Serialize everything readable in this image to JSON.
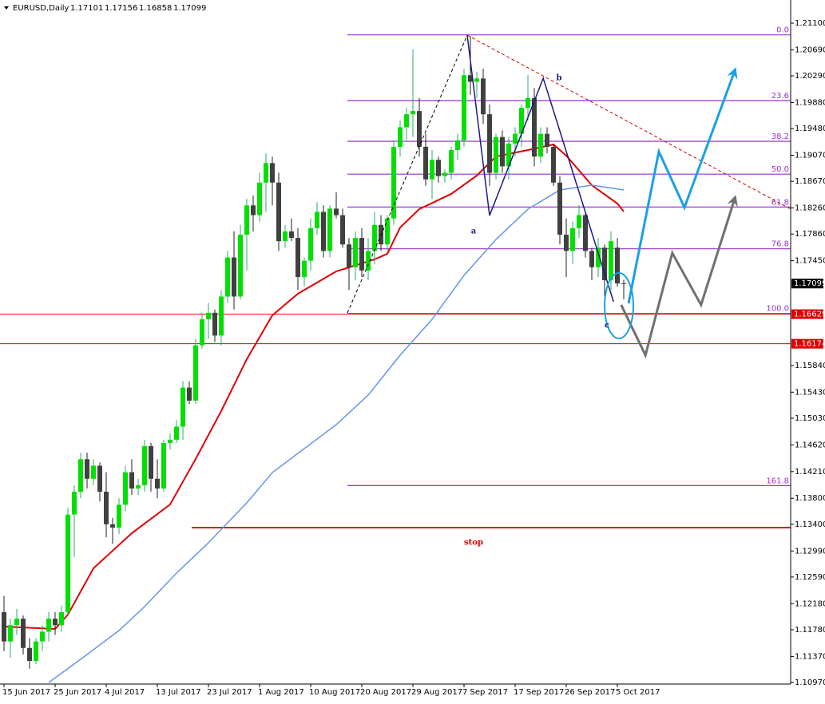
{
  "chart_data": {
    "type": "candlestick",
    "symbol": "EURUSD,Daily",
    "categories": [
      "15 Jun 2017",
      null,
      null,
      null,
      null,
      null,
      null,
      null,
      "25 Jun 2017",
      null,
      null,
      null,
      null,
      null,
      null,
      null,
      "4 Jul 2017",
      null,
      null,
      null,
      null,
      null,
      null,
      null,
      "13 Jul 2017",
      null,
      null,
      null,
      null,
      null,
      null,
      null,
      "23 Jul 2017",
      null,
      null,
      null,
      null,
      null,
      null,
      null,
      "1 Aug 2017",
      null,
      null,
      null,
      null,
      null,
      null,
      null,
      "10 Aug 2017",
      null,
      null,
      null,
      null,
      null,
      null,
      null,
      "20 Aug 2017",
      null,
      null,
      null,
      null,
      null,
      null,
      null,
      "29 Aug 2017",
      null,
      null,
      null,
      null,
      null,
      null,
      null,
      "7 Sep 2017",
      null,
      null,
      null,
      null,
      null,
      null,
      null,
      "17 Sep 2017",
      null,
      null,
      null,
      null,
      null,
      null,
      null,
      "26 Sep 2017",
      null,
      null,
      null,
      null,
      null,
      null,
      null,
      "5 Oct 2017",
      null
    ],
    "open": [
      1.1205,
      1.116,
      1.1185,
      1.1195,
      1.115,
      1.113,
      1.116,
      1.1175,
      1.1195,
      1.1185,
      1.1205,
      1.1355,
      1.139,
      1.144,
      1.141,
      1.143,
      1.139,
      1.134,
      1.1335,
      1.137,
      1.142,
      1.1395,
      1.14,
      1.146,
      1.141,
      1.1395,
      1.1465,
      1.147,
      1.149,
      1.155,
      1.153,
      1.1615,
      1.1655,
      1.1665,
      1.163,
      1.169,
      1.175,
      1.169,
      1.1785,
      1.183,
      1.1815,
      1.1865,
      1.1895,
      1.1865,
      1.1775,
      1.179,
      1.178,
      1.172,
      1.1745,
      1.1795,
      1.182,
      1.176,
      1.1825,
      1.1815,
      1.177,
      1.1735,
      1.178,
      1.173,
      1.176,
      1.18,
      1.177,
      1.181,
      1.192,
      1.195,
      1.197,
      1.1975,
      1.192,
      1.187,
      1.19,
      1.1875,
      1.188,
      1.1915,
      1.193,
      1.203,
      1.202,
      1.2025,
      1.197,
      1.188,
      1.1935,
      1.189,
      1.1925,
      1.194,
      1.198,
      1.1995,
      1.1905,
      1.194,
      1.192,
      1.1865,
      1.1785,
      1.176,
      1.1795,
      1.1815,
      1.176,
      1.1735,
      1.1765,
      1.1715,
      1.1765,
      1.17101
    ],
    "high": [
      1.123,
      1.1195,
      1.121,
      1.12,
      1.1165,
      1.1165,
      1.1185,
      1.1205,
      1.1205,
      1.1215,
      1.1365,
      1.14,
      1.145,
      1.145,
      1.144,
      1.1435,
      1.142,
      1.135,
      1.138,
      1.143,
      1.144,
      1.141,
      1.147,
      1.1465,
      1.144,
      1.147,
      1.148,
      1.15,
      1.156,
      1.156,
      1.1625,
      1.1665,
      1.168,
      1.167,
      1.17,
      1.176,
      1.179,
      1.18,
      1.184,
      1.1845,
      1.188,
      1.191,
      1.1905,
      1.188,
      1.18,
      1.181,
      1.1795,
      1.175,
      1.181,
      1.1835,
      1.183,
      1.183,
      1.185,
      1.1825,
      1.178,
      1.179,
      1.1795,
      1.178,
      1.182,
      1.1815,
      1.1815,
      1.193,
      1.196,
      1.198,
      1.207,
      1.1995,
      1.194,
      1.1915,
      1.1905,
      1.1885,
      1.192,
      1.194,
      1.204,
      1.209,
      1.2035,
      1.204,
      1.1985,
      1.194,
      1.1945,
      1.1935,
      1.195,
      1.1985,
      1.203,
      1.201,
      1.195,
      1.195,
      1.1925,
      1.1875,
      1.181,
      1.1805,
      1.183,
      1.182,
      1.1765,
      1.178,
      1.177,
      1.179,
      1.178,
      1.17156
    ],
    "low": [
      1.1145,
      1.1135,
      1.117,
      1.114,
      1.1118,
      1.1125,
      1.1145,
      1.116,
      1.117,
      1.1175,
      1.12,
      1.129,
      1.138,
      1.1395,
      1.14,
      1.1375,
      1.132,
      1.131,
      1.1325,
      1.136,
      1.1385,
      1.1385,
      1.139,
      1.139,
      1.138,
      1.139,
      1.1455,
      1.1465,
      1.147,
      1.1525,
      1.1525,
      1.161,
      1.1625,
      1.162,
      1.1615,
      1.168,
      1.167,
      1.1685,
      1.173,
      1.179,
      1.1805,
      1.182,
      1.183,
      1.176,
      1.1765,
      1.1775,
      1.17,
      1.1705,
      1.173,
      1.1785,
      1.175,
      1.175,
      1.181,
      1.1765,
      1.17,
      1.1715,
      1.172,
      1.1715,
      1.174,
      1.176,
      1.176,
      1.18,
      1.1905,
      1.193,
      1.1935,
      1.1905,
      1.186,
      1.184,
      1.1865,
      1.1865,
      1.187,
      1.19,
      1.192,
      1.2,
      1.1995,
      1.1955,
      1.186,
      1.187,
      1.188,
      1.187,
      1.1905,
      1.192,
      1.196,
      1.189,
      1.1895,
      1.191,
      1.186,
      1.177,
      1.172,
      1.174,
      1.178,
      1.175,
      1.1715,
      1.172,
      1.169,
      1.17,
      1.1705,
      1.16858
    ],
    "close": [
      1.116,
      1.1185,
      1.1195,
      1.115,
      1.113,
      1.116,
      1.1175,
      1.1195,
      1.1185,
      1.1205,
      1.1355,
      1.139,
      1.144,
      1.141,
      1.143,
      1.139,
      1.134,
      1.1335,
      1.137,
      1.142,
      1.1395,
      1.14,
      1.146,
      1.141,
      1.1395,
      1.1465,
      1.147,
      1.149,
      1.155,
      1.153,
      1.1615,
      1.1655,
      1.1665,
      1.163,
      1.169,
      1.175,
      1.169,
      1.1785,
      1.183,
      1.1815,
      1.1865,
      1.1895,
      1.1865,
      1.1775,
      1.179,
      1.178,
      1.172,
      1.1745,
      1.1795,
      1.182,
      1.176,
      1.1825,
      1.1815,
      1.177,
      1.1735,
      1.178,
      1.173,
      1.176,
      1.18,
      1.177,
      1.181,
      1.192,
      1.195,
      1.197,
      1.1975,
      1.192,
      1.187,
      1.19,
      1.1875,
      1.188,
      1.1915,
      1.193,
      1.203,
      1.202,
      1.2025,
      1.197,
      1.188,
      1.1935,
      1.189,
      1.1925,
      1.194,
      1.198,
      1.1995,
      1.1905,
      1.194,
      1.192,
      1.1865,
      1.1785,
      1.176,
      1.1795,
      1.1815,
      1.176,
      1.1735,
      1.1765,
      1.1715,
      1.1775,
      1.171,
      1.17099
    ],
    "bull_color": "#00e000",
    "bear_color": "#404040",
    "ylim": [
      1.1097,
      1.211
    ],
    "yticks": [
      {
        "value": 1.211,
        "label": "1.21100"
      },
      {
        "value": 1.2069,
        "label": "1.20690"
      },
      {
        "value": 1.2029,
        "label": "1.20290"
      },
      {
        "value": 1.1988,
        "label": "1.19880"
      },
      {
        "value": 1.1948,
        "label": "1.19480"
      },
      {
        "value": 1.1907,
        "label": "1.19070"
      },
      {
        "value": 1.1867,
        "label": "1.18670"
      },
      {
        "value": 1.1826,
        "label": "1.18260"
      },
      {
        "value": 1.1786,
        "label": "1.17860"
      },
      {
        "value": 1.1745,
        "label": "1.17450"
      },
      {
        "value": 1.1584,
        "label": "1.15840"
      },
      {
        "value": 1.1543,
        "label": "1.15430"
      },
      {
        "value": 1.1503,
        "label": "1.15030"
      },
      {
        "value": 1.1462,
        "label": "1.14620"
      },
      {
        "value": 1.1421,
        "label": "1.14210"
      },
      {
        "value": 1.138,
        "label": "1.13800"
      },
      {
        "value": 1.134,
        "label": "1.13400"
      },
      {
        "value": 1.1299,
        "label": "1.12990"
      },
      {
        "value": 1.1259,
        "label": "1.12590"
      },
      {
        "value": 1.1218,
        "label": "1.12180"
      },
      {
        "value": 1.1178,
        "label": "1.11780"
      },
      {
        "value": 1.1137,
        "label": "1.11370"
      },
      {
        "value": 1.1097,
        "label": "1.10970"
      }
    ],
    "ma_lines": [
      {
        "color": "#e00000",
        "x": [
          0,
          8,
          10,
          14,
          20,
          26,
          30,
          34,
          38,
          42,
          46,
          52,
          58,
          60,
          62,
          65,
          70,
          74,
          77,
          82,
          86,
          88,
          92,
          96,
          97
        ],
        "values": [
          1.11828,
          1.11792,
          1.12012,
          1.12724,
          1.13263,
          1.13705,
          1.14404,
          1.1514,
          1.15937,
          1.16611,
          1.16943,
          1.17286,
          1.1747,
          1.17556,
          1.1796,
          1.18243,
          1.18476,
          1.18758,
          1.19052,
          1.1915,
          1.19236,
          1.19064,
          1.1861,
          1.18328,
          1.18206
        ]
      },
      {
        "color": "#6495ed",
        "x": [
          7,
          12,
          18,
          22,
          27,
          32,
          38,
          42,
          47,
          52,
          57,
          62,
          67,
          72,
          77,
          82,
          87,
          92,
          97
        ],
        "values": [
          1.1097,
          1.11326,
          1.11767,
          1.12135,
          1.1265,
          1.13116,
          1.1373,
          1.14195,
          1.14563,
          1.14931,
          1.15385,
          1.15998,
          1.1655,
          1.17225,
          1.17776,
          1.18242,
          1.18537,
          1.1861,
          1.18537
        ]
      }
    ],
    "horizontal_lines": [
      {
        "value": 1.16629,
        "color": "#e00000"
      },
      {
        "value": 1.16174,
        "color": "#e00000"
      }
    ],
    "fib": {
      "color": "#9932cc",
      "start": 53.75,
      "levels": [
        {
          "label": "0.0",
          "value": 1.2092
        },
        {
          "label": "23.6",
          "value": 1.1991
        },
        {
          "label": "38.2",
          "value": 1.19285
        },
        {
          "label": "50.0",
          "value": 1.1878
        },
        {
          "label": "61.8",
          "value": 1.18275
        },
        {
          "label": "76.8",
          "value": 1.17633
        },
        {
          "label": "100.0",
          "value": 1.1664
        },
        {
          "label": "161.8",
          "value": 1.13995
        }
      ]
    },
    "stop": {
      "label": "stop",
      "value": 1.13349,
      "start": 29.4,
      "color": "#e00000"
    },
    "drawings": [
      {
        "color": "#000000",
        "dash": true,
        "width": 1,
        "x": [
          53.75,
          72.5
        ],
        "values": [
          1.16648,
          1.20916
        ]
      },
      {
        "color": "#cc0000",
        "dash": true,
        "width": 1,
        "x": [
          72.5,
          128.5
        ],
        "values": [
          1.20916,
          1.1796
        ]
      },
      {
        "color": "#1a1a80",
        "dash": false,
        "width": 1.5,
        "x": [
          72.5,
          76,
          84.4,
          95.4
        ],
        "values": [
          1.20916,
          1.18144,
          1.20254,
          1.1682
        ]
      },
      {
        "color": "#1aa0e6",
        "dash": false,
        "width": 3,
        "arrow": true,
        "x": [
          97.75,
          102.5,
          106.5,
          114.4
        ],
        "values": [
          1.16795,
          1.19126,
          1.18267,
          1.20376
        ]
      },
      {
        "color": "#707070",
        "dash": false,
        "width": 3,
        "arrow": true,
        "x": [
          96.6,
          100.4,
          104.6,
          109.1,
          114.4
        ],
        "values": [
          1.16771,
          1.15998,
          1.17568,
          1.16771,
          1.18414
        ]
      }
    ],
    "annotations": [
      "a",
      "b",
      "c"
    ]
  }
}
